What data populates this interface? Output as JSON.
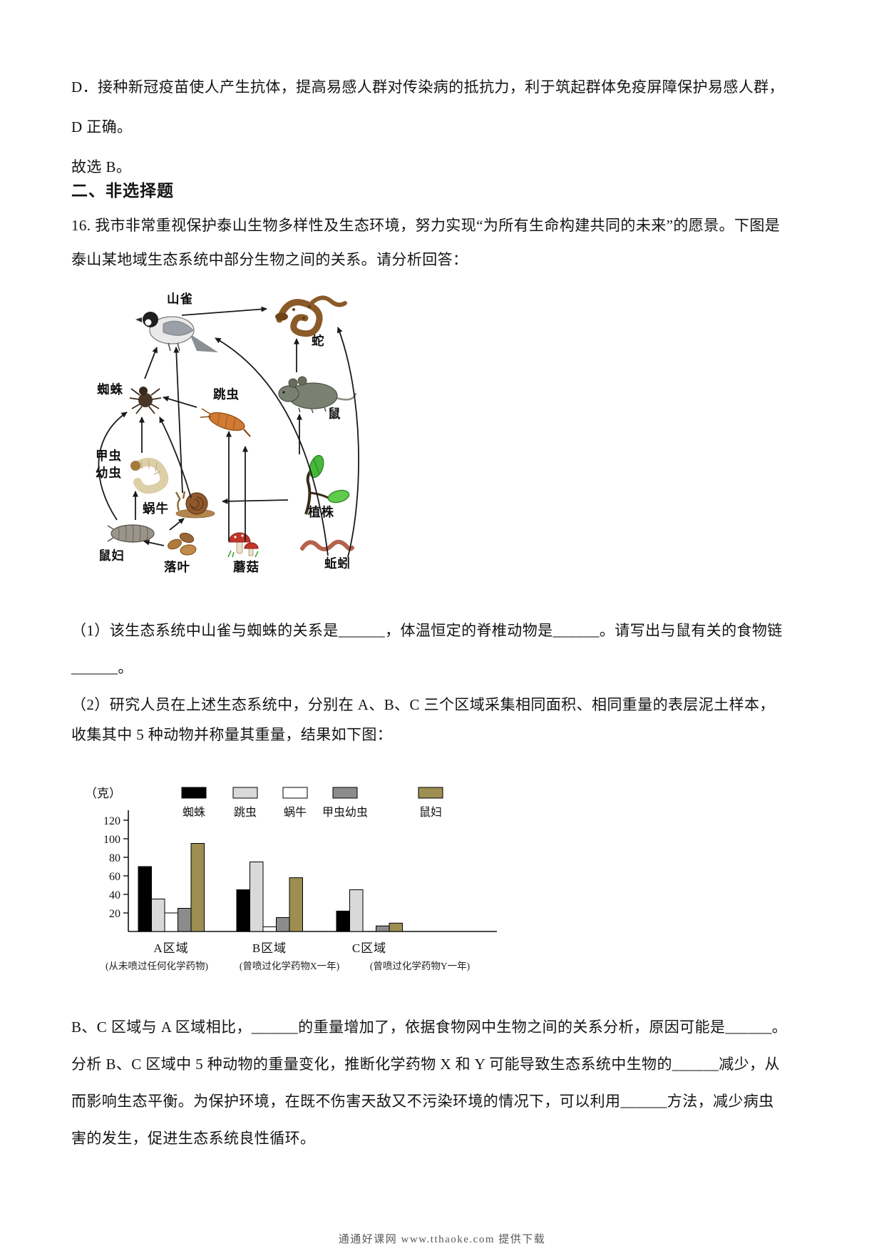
{
  "document": {
    "lines": {
      "option_d": "D．接种新冠疫苗使人产生抗体，提高易感人群对传染病的抵抗力，利于筑起群体免疫屏障保护易感人群，",
      "d_correct": "D 正确。",
      "answer": "故选 B。",
      "section_header": "二、非选择题",
      "q16_intro_1": "16. 我市非常重视保护泰山生物多样性及生态环境，努力实现“为所有生命构建共同的未来”的愿景。下图是",
      "q16_intro_2": "泰山某地域生态系统中部分生物之间的关系。请分析回答：",
      "q1_part1": "（1）该生态系统中山雀与蜘蛛的关系是______，体温恒定的脊椎动物是______。请写出与鼠有关的食物链",
      "q1_part2": "______。",
      "q2_part1": "（2）研究人员在上述生态系统中，分别在 A、B、C 三个区域采集相同面积、相同重量的表层泥土样本，",
      "q2_part2": "收集其中 5 种动物并称量其重量，结果如下图：",
      "q2_after_1": "B、C 区域与 A 区域相比，______的重量增加了，依据食物网中生物之间的关系分析，原因可能是______。",
      "q2_after_2": "分析 B、C 区域中 5 种动物的重量变化，推断化学药物 X 和 Y 可能导致生态系统中生物的______减少，从",
      "q2_after_3": "而影响生态平衡。为保护环境，在既不伤害天敌又不污染环境的情况下，可以利用______方法，减少病虫",
      "q2_after_4": "害的发生，促进生态系统良性循环。"
    },
    "footer": "通通好课网  www.tthaoke.com  提供下载"
  },
  "foodweb": {
    "nodes": {
      "bird": {
        "label": "山雀"
      },
      "snake": {
        "label": "蛇"
      },
      "spider": {
        "label": "蜘蛛"
      },
      "springtail": {
        "label": "跳虫"
      },
      "rat": {
        "label": "鼠"
      },
      "beetle_larva": {
        "label": "甲虫幼虫",
        "label_line1": "甲虫",
        "label_line2": "幼虫"
      },
      "snail": {
        "label": "蜗牛"
      },
      "plant": {
        "label": "植株"
      },
      "pillbug": {
        "label": "鼠妇"
      },
      "fallen_leaves": {
        "label": "落叶"
      },
      "mushroom": {
        "label": "蘑菇"
      },
      "earthworm": {
        "label": "蚯蚓"
      }
    }
  },
  "chart_data": {
    "type": "bar",
    "title": "",
    "ylabel": "（克）",
    "categories": [
      "A区域",
      "B区域",
      "C区域"
    ],
    "category_captions": [
      "(从未喷过任何化学药物)",
      "(曾喷过化学药物X一年)",
      "(曾喷过化学药物Y一年)"
    ],
    "series": [
      {
        "name": "蜘蛛",
        "color": "#000000",
        "values": [
          70,
          45,
          22
        ]
      },
      {
        "name": "跳虫",
        "color": "#d9d9d9",
        "values": [
          35,
          75,
          45
        ]
      },
      {
        "name": "蜗牛",
        "color": "#ffffff",
        "values": [
          20,
          5,
          0
        ]
      },
      {
        "name": "甲虫幼虫",
        "color": "#8c8c8c",
        "values": [
          25,
          15,
          6
        ]
      },
      {
        "name": "鼠妇",
        "color": "#9d8e51",
        "values": [
          95,
          58,
          9
        ]
      }
    ],
    "yticks": [
      20,
      40,
      60,
      80,
      100,
      120
    ],
    "ylim": [
      0,
      130
    ],
    "grid": false,
    "legend_position": "top"
  }
}
